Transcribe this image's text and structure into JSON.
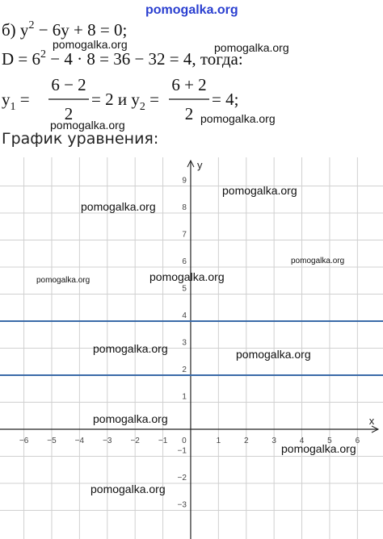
{
  "watermark_top": "pomogalka.org",
  "watermarks": [
    "pomogalka.org",
    "pomogalka.org",
    "pomogalka.org",
    "pomogalka.org",
    "pomogalka.org",
    "pomogalka.org",
    "pomogalka.org",
    "pomogalka.org",
    "pomogalka.org",
    "pomogalka.org",
    "pomogalka.org",
    "pomogalka.org",
    "pomogalka.org",
    "pomogalka.org"
  ],
  "solution": {
    "equation": [
      "б) y",
      "2",
      " − 6y + 8 = 0;"
    ],
    "discriminant": [
      "D = 6",
      "2",
      " − 4 · 8 = 36 − 32 = 4, тогда:"
    ],
    "roots": {
      "y1": "y",
      "y1_index": "1",
      "eq1": " =",
      "num1": "6 − 2",
      "den1": "2",
      "res1": " = 2  и  y",
      "y2_index": "2",
      "eq2": " =",
      "num2": "6 + 2",
      "den2": "2",
      "res2": " = 4;"
    },
    "graph_heading": "График уравнения:"
  },
  "chart_data": {
    "type": "line",
    "x_label": "x",
    "y_label": "y",
    "origin_label": "0",
    "x": [
      -6.86,
      6.92
    ],
    "series": [
      {
        "color": "#3a6aa8",
        "values": [
          4,
          4
        ]
      },
      {
        "color": "#3a6aa8",
        "values": [
          2,
          2
        ]
      }
    ],
    "xlim": [
      -6.86,
      6.92
    ],
    "ylim": [
      -4.06,
      10.06
    ],
    "xticks": [
      {
        "value": -6,
        "label": "−6"
      },
      {
        "value": -5,
        "label": "−5"
      },
      {
        "value": -4,
        "label": "−4"
      },
      {
        "value": -3,
        "label": "−3"
      },
      {
        "value": -2,
        "label": "−2"
      },
      {
        "value": -1,
        "label": "−1"
      },
      1,
      2,
      3,
      4,
      5,
      6
    ],
    "yticks": [
      {
        "value": -3,
        "label": "−3"
      },
      {
        "value": -2,
        "label": "−2"
      },
      {
        "value": -1,
        "label": "−1"
      },
      1,
      2,
      3,
      4,
      5,
      6,
      7,
      8,
      9
    ],
    "grid": true
  }
}
